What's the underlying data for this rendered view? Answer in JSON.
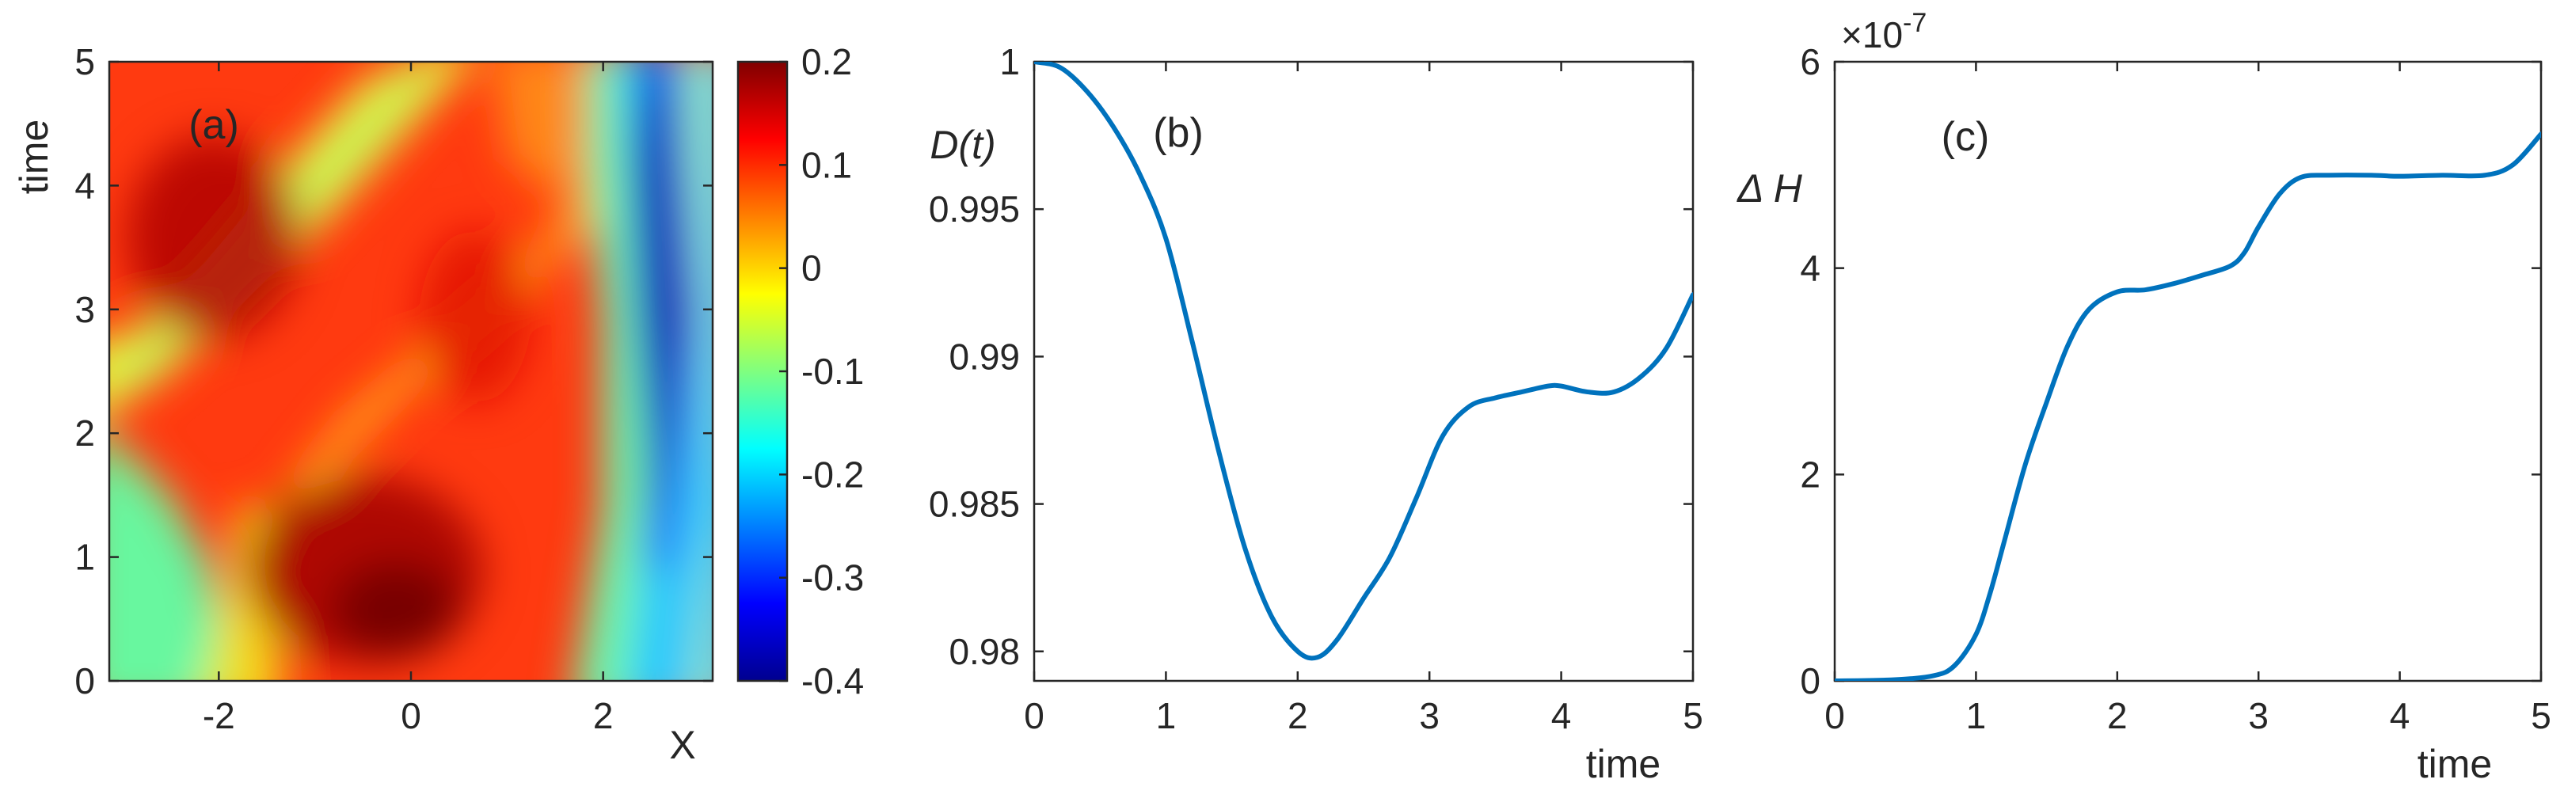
{
  "chart_data": [
    {
      "type": "heatmap",
      "panel_label": "(a)",
      "xlabel": "X",
      "ylabel": "time",
      "xlim": [
        -3.14,
        3.14
      ],
      "ylim": [
        0,
        5
      ],
      "xticks": [
        -2,
        0,
        2
      ],
      "yticks": [
        0,
        1,
        2,
        3,
        4,
        5
      ],
      "colorbar": {
        "range": [
          -0.4,
          0.2
        ],
        "ticks": [
          0.2,
          0.1,
          0,
          -0.1,
          -0.2,
          -0.3,
          -0.4
        ],
        "colormap": "jet"
      },
      "field_description": "red crests drifting right; deep-blue trough near X≈2.4 for time 1.3–5; dark-red maximum near X≈0.7, time≈0.5"
    },
    {
      "type": "line",
      "panel_label": "(b)",
      "xlabel": "time",
      "ylabel": "D(t)",
      "xlim": [
        0,
        5
      ],
      "ylim": [
        0.979,
        1.0
      ],
      "xticks": [
        0,
        1,
        2,
        3,
        4,
        5
      ],
      "yticks": [
        0.98,
        0.985,
        0.99,
        0.995,
        1
      ],
      "color": "#0072BD",
      "x": [
        0,
        0.2,
        0.4,
        0.6,
        0.8,
        1.0,
        1.2,
        1.4,
        1.6,
        1.8,
        2.0,
        2.15,
        2.3,
        2.5,
        2.7,
        2.9,
        3.1,
        3.3,
        3.5,
        3.7,
        3.9,
        4.0,
        4.2,
        4.4,
        4.6,
        4.8,
        5.0
      ],
      "y": [
        1.0,
        0.9998,
        0.999,
        0.9978,
        0.9962,
        0.994,
        0.9905,
        0.9868,
        0.9835,
        0.9812,
        0.98,
        0.9798,
        0.9804,
        0.9818,
        0.9832,
        0.9852,
        0.9873,
        0.9883,
        0.9886,
        0.9888,
        0.989,
        0.989,
        0.9888,
        0.9888,
        0.9893,
        0.9903,
        0.9921
      ]
    },
    {
      "type": "line",
      "panel_label": "(c)",
      "xlabel": "time",
      "ylabel": "Δ H",
      "y_exponent": "×10",
      "y_exponent_power": "-7",
      "xlim": [
        0,
        5
      ],
      "ylim": [
        0,
        6
      ],
      "xticks": [
        0,
        1,
        2,
        3,
        4,
        5
      ],
      "yticks": [
        0,
        2,
        4,
        6
      ],
      "color": "#0072BD",
      "x": [
        0,
        0.4,
        0.7,
        0.85,
        1.0,
        1.1,
        1.2,
        1.35,
        1.5,
        1.65,
        1.8,
        2.0,
        2.2,
        2.4,
        2.6,
        2.8,
        2.9,
        3.0,
        3.15,
        3.3,
        3.5,
        3.8,
        4.0,
        4.3,
        4.6,
        4.8,
        5.0
      ],
      "y": [
        0.0,
        0.01,
        0.05,
        0.15,
        0.45,
        0.85,
        1.35,
        2.1,
        2.7,
        3.25,
        3.6,
        3.77,
        3.79,
        3.85,
        3.93,
        4.02,
        4.15,
        4.4,
        4.72,
        4.88,
        4.9,
        4.9,
        4.89,
        4.9,
        4.9,
        5.0,
        5.3
      ]
    }
  ]
}
